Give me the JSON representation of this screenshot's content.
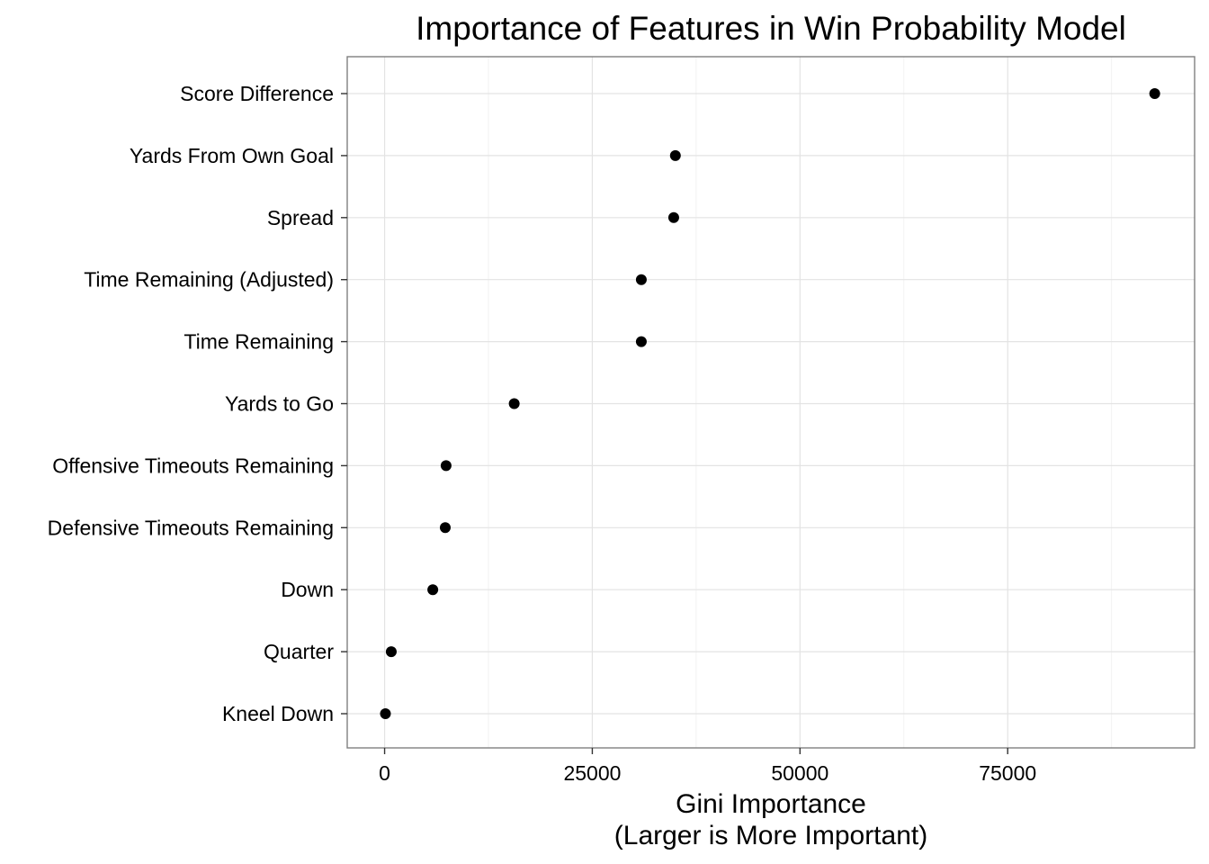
{
  "chart_data": {
    "type": "scatter",
    "title": "Importance of Features in Win Probability Model",
    "xlabel": "Gini Importance",
    "xlabel_line2": "(Larger is More Important)",
    "ylabel": "",
    "xlim": [
      -4500,
      97500
    ],
    "x_ticks": [
      0,
      25000,
      50000,
      75000
    ],
    "x_tick_labels": [
      "0",
      "25000",
      "50000",
      "75000"
    ],
    "grid": true,
    "legend": "none",
    "point_color": "#000000",
    "categories": [
      "Score Difference",
      "Yards From Own Goal",
      "Spread",
      "Time Remaining (Adjusted)",
      "Time Remaining",
      "Yards to Go",
      "Offensive Timeouts Remaining",
      "Defensive Timeouts Remaining",
      "Down",
      "Quarter",
      "Kneel Down"
    ],
    "values": [
      92700,
      35000,
      34800,
      30900,
      30900,
      15600,
      7400,
      7300,
      5800,
      800,
      100
    ]
  }
}
